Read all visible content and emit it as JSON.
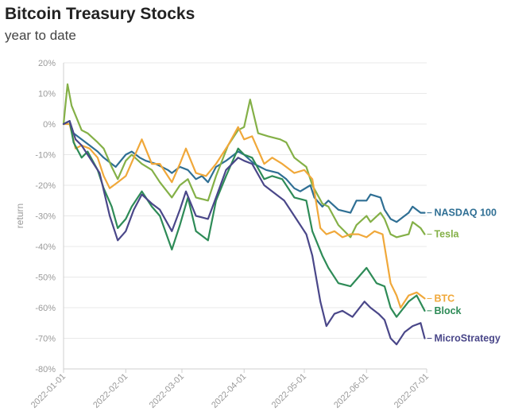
{
  "chart_data": {
    "type": "line",
    "title": "Bitcoin Treasury Stocks",
    "subtitle": "year to date",
    "ylabel": "return",
    "ylim": [
      -80,
      20
    ],
    "y_ticks": [
      20,
      10,
      0,
      -10,
      -20,
      -30,
      -40,
      -50,
      -60,
      -70,
      -80
    ],
    "y_tick_labels": [
      "20%",
      "10%",
      "0%",
      "-10%",
      "-20%",
      "-30%",
      "-40%",
      "-50%",
      "-60%",
      "-70%",
      "-80%"
    ],
    "xlim": [
      "2022-01-01",
      "2022-07-01"
    ],
    "x_ticks": [
      "2022-01-01",
      "2022-02-01",
      "2022-03-01",
      "2022-04-01",
      "2022-05-01",
      "2022-06-01",
      "2022-07-01"
    ],
    "grid": true,
    "legend": "line-end labels",
    "series": [
      {
        "name": "NASDAQ 100",
        "color": "#2f6f94",
        "points": [
          [
            "2022-01-01",
            0
          ],
          [
            "2022-01-04",
            1
          ],
          [
            "2022-01-06",
            -3
          ],
          [
            "2022-01-10",
            -5
          ],
          [
            "2022-01-14",
            -7
          ],
          [
            "2022-01-18",
            -9
          ],
          [
            "2022-01-21",
            -11
          ],
          [
            "2022-01-25",
            -13
          ],
          [
            "2022-01-27",
            -14
          ],
          [
            "2022-02-01",
            -10
          ],
          [
            "2022-02-04",
            -9
          ],
          [
            "2022-02-08",
            -11
          ],
          [
            "2022-02-11",
            -12
          ],
          [
            "2022-02-16",
            -13
          ],
          [
            "2022-02-22",
            -15
          ],
          [
            "2022-02-24",
            -16
          ],
          [
            "2022-02-28",
            -14
          ],
          [
            "2022-03-04",
            -15
          ],
          [
            "2022-03-08",
            -18
          ],
          [
            "2022-03-11",
            -17
          ],
          [
            "2022-03-14",
            -19
          ],
          [
            "2022-03-18",
            -14
          ],
          [
            "2022-03-23",
            -12
          ],
          [
            "2022-03-29",
            -9
          ],
          [
            "2022-04-01",
            -10
          ],
          [
            "2022-04-06",
            -13
          ],
          [
            "2022-04-12",
            -15
          ],
          [
            "2022-04-18",
            -16
          ],
          [
            "2022-04-22",
            -18
          ],
          [
            "2022-04-26",
            -21
          ],
          [
            "2022-04-29",
            -22
          ],
          [
            "2022-05-04",
            -20
          ],
          [
            "2022-05-06",
            -24
          ],
          [
            "2022-05-10",
            -27
          ],
          [
            "2022-05-13",
            -25
          ],
          [
            "2022-05-18",
            -28
          ],
          [
            "2022-05-24",
            -29
          ],
          [
            "2022-05-27",
            -25
          ],
          [
            "2022-06-01",
            -25
          ],
          [
            "2022-06-03",
            -23
          ],
          [
            "2022-06-08",
            -24
          ],
          [
            "2022-06-10",
            -28
          ],
          [
            "2022-06-13",
            -31
          ],
          [
            "2022-06-16",
            -32
          ],
          [
            "2022-06-22",
            -29
          ],
          [
            "2022-06-24",
            -27
          ],
          [
            "2022-06-28",
            -29
          ],
          [
            "2022-06-30",
            -29
          ]
        ]
      },
      {
        "name": "Tesla",
        "color": "#84b047",
        "points": [
          [
            "2022-01-01",
            0
          ],
          [
            "2022-01-03",
            13
          ],
          [
            "2022-01-05",
            6
          ],
          [
            "2022-01-10",
            -2
          ],
          [
            "2022-01-13",
            -3
          ],
          [
            "2022-01-18",
            -6
          ],
          [
            "2022-01-21",
            -8
          ],
          [
            "2022-01-25",
            -14
          ],
          [
            "2022-01-28",
            -18
          ],
          [
            "2022-02-01",
            -12
          ],
          [
            "2022-02-04",
            -10
          ],
          [
            "2022-02-09",
            -13
          ],
          [
            "2022-02-14",
            -15
          ],
          [
            "2022-02-18",
            -19
          ],
          [
            "2022-02-24",
            -24
          ],
          [
            "2022-02-28",
            -20
          ],
          [
            "2022-03-04",
            -18
          ],
          [
            "2022-03-08",
            -24
          ],
          [
            "2022-03-14",
            -25
          ],
          [
            "2022-03-18",
            -17
          ],
          [
            "2022-03-24",
            -7
          ],
          [
            "2022-03-29",
            -2
          ],
          [
            "2022-04-01",
            -1
          ],
          [
            "2022-04-04",
            8
          ],
          [
            "2022-04-08",
            -3
          ],
          [
            "2022-04-13",
            -4
          ],
          [
            "2022-04-19",
            -5
          ],
          [
            "2022-04-22",
            -6
          ],
          [
            "2022-04-26",
            -11
          ],
          [
            "2022-05-02",
            -14
          ],
          [
            "2022-05-05",
            -20
          ],
          [
            "2022-05-10",
            -26
          ],
          [
            "2022-05-13",
            -27
          ],
          [
            "2022-05-18",
            -33
          ],
          [
            "2022-05-24",
            -37
          ],
          [
            "2022-05-27",
            -33
          ],
          [
            "2022-06-01",
            -30
          ],
          [
            "2022-06-03",
            -32
          ],
          [
            "2022-06-08",
            -29
          ],
          [
            "2022-06-10",
            -31
          ],
          [
            "2022-06-13",
            -36
          ],
          [
            "2022-06-16",
            -37
          ],
          [
            "2022-06-22",
            -36
          ],
          [
            "2022-06-24",
            -32
          ],
          [
            "2022-06-28",
            -34
          ],
          [
            "2022-06-30",
            -36
          ]
        ]
      },
      {
        "name": "BTC",
        "color": "#f0a83a",
        "points": [
          [
            "2022-01-01",
            0
          ],
          [
            "2022-01-04",
            0
          ],
          [
            "2022-01-07",
            -8
          ],
          [
            "2022-01-10",
            -7
          ],
          [
            "2022-01-14",
            -8
          ],
          [
            "2022-01-18",
            -11
          ],
          [
            "2022-01-21",
            -17
          ],
          [
            "2022-01-24",
            -21
          ],
          [
            "2022-01-28",
            -19
          ],
          [
            "2022-02-01",
            -17
          ],
          [
            "2022-02-05",
            -11
          ],
          [
            "2022-02-09",
            -5
          ],
          [
            "2022-02-14",
            -13
          ],
          [
            "2022-02-18",
            -13
          ],
          [
            "2022-02-24",
            -19
          ],
          [
            "2022-02-28",
            -13
          ],
          [
            "2022-03-03",
            -8
          ],
          [
            "2022-03-08",
            -16
          ],
          [
            "2022-03-13",
            -17
          ],
          [
            "2022-03-18",
            -13
          ],
          [
            "2022-03-24",
            -7
          ],
          [
            "2022-03-29",
            -1
          ],
          [
            "2022-04-01",
            -5
          ],
          [
            "2022-04-05",
            -4
          ],
          [
            "2022-04-11",
            -13
          ],
          [
            "2022-04-15",
            -11
          ],
          [
            "2022-04-20",
            -13
          ],
          [
            "2022-04-26",
            -16
          ],
          [
            "2022-05-01",
            -15
          ],
          [
            "2022-05-05",
            -18
          ],
          [
            "2022-05-09",
            -34
          ],
          [
            "2022-05-12",
            -36
          ],
          [
            "2022-05-16",
            -35
          ],
          [
            "2022-05-20",
            -37
          ],
          [
            "2022-05-24",
            -36
          ],
          [
            "2022-05-28",
            -36
          ],
          [
            "2022-06-01",
            -37
          ],
          [
            "2022-06-05",
            -35
          ],
          [
            "2022-06-09",
            -36
          ],
          [
            "2022-06-13",
            -52
          ],
          [
            "2022-06-16",
            -56
          ],
          [
            "2022-06-18",
            -60
          ],
          [
            "2022-06-22",
            -56
          ],
          [
            "2022-06-26",
            -55
          ],
          [
            "2022-06-30",
            -57
          ]
        ]
      },
      {
        "name": "Block",
        "color": "#2e8b57",
        "points": [
          [
            "2022-01-01",
            0
          ],
          [
            "2022-01-04",
            1
          ],
          [
            "2022-01-06",
            -6
          ],
          [
            "2022-01-10",
            -11
          ],
          [
            "2022-01-13",
            -9
          ],
          [
            "2022-01-18",
            -15
          ],
          [
            "2022-01-21",
            -21
          ],
          [
            "2022-01-25",
            -27
          ],
          [
            "2022-01-28",
            -34
          ],
          [
            "2022-02-01",
            -31
          ],
          [
            "2022-02-04",
            -27
          ],
          [
            "2022-02-09",
            -22
          ],
          [
            "2022-02-14",
            -27
          ],
          [
            "2022-02-18",
            -30
          ],
          [
            "2022-02-24",
            -41
          ],
          [
            "2022-02-28",
            -33
          ],
          [
            "2022-03-04",
            -24
          ],
          [
            "2022-03-08",
            -35
          ],
          [
            "2022-03-14",
            -38
          ],
          [
            "2022-03-18",
            -25
          ],
          [
            "2022-03-23",
            -17
          ],
          [
            "2022-03-29",
            -8
          ],
          [
            "2022-04-01",
            -10
          ],
          [
            "2022-04-05",
            -11
          ],
          [
            "2022-04-11",
            -18
          ],
          [
            "2022-04-15",
            -17
          ],
          [
            "2022-04-20",
            -18
          ],
          [
            "2022-04-26",
            -24
          ],
          [
            "2022-05-02",
            -25
          ],
          [
            "2022-05-05",
            -35
          ],
          [
            "2022-05-10",
            -43
          ],
          [
            "2022-05-13",
            -47
          ],
          [
            "2022-05-18",
            -52
          ],
          [
            "2022-05-24",
            -53
          ],
          [
            "2022-05-28",
            -50
          ],
          [
            "2022-06-01",
            -47
          ],
          [
            "2022-06-06",
            -52
          ],
          [
            "2022-06-10",
            -53
          ],
          [
            "2022-06-13",
            -60
          ],
          [
            "2022-06-16",
            -63
          ],
          [
            "2022-06-22",
            -58
          ],
          [
            "2022-06-26",
            -56
          ],
          [
            "2022-06-30",
            -61
          ]
        ]
      },
      {
        "name": "MicroStrategy",
        "color": "#4a4789",
        "points": [
          [
            "2022-01-01",
            0
          ],
          [
            "2022-01-04",
            1
          ],
          [
            "2022-01-07",
            -5
          ],
          [
            "2022-01-10",
            -7
          ],
          [
            "2022-01-14",
            -11
          ],
          [
            "2022-01-19",
            -16
          ],
          [
            "2022-01-24",
            -30
          ],
          [
            "2022-01-28",
            -38
          ],
          [
            "2022-02-01",
            -35
          ],
          [
            "2022-02-05",
            -28
          ],
          [
            "2022-02-09",
            -23
          ],
          [
            "2022-02-14",
            -26
          ],
          [
            "2022-02-18",
            -28
          ],
          [
            "2022-02-24",
            -35
          ],
          [
            "2022-02-28",
            -28
          ],
          [
            "2022-03-03",
            -22
          ],
          [
            "2022-03-08",
            -30
          ],
          [
            "2022-03-14",
            -31
          ],
          [
            "2022-03-18",
            -24
          ],
          [
            "2022-03-23",
            -15
          ],
          [
            "2022-03-29",
            -11
          ],
          [
            "2022-04-01",
            -12
          ],
          [
            "2022-04-05",
            -13
          ],
          [
            "2022-04-11",
            -20
          ],
          [
            "2022-04-15",
            -22
          ],
          [
            "2022-04-21",
            -25
          ],
          [
            "2022-04-27",
            -31
          ],
          [
            "2022-05-02",
            -36
          ],
          [
            "2022-05-05",
            -43
          ],
          [
            "2022-05-09",
            -58
          ],
          [
            "2022-05-12",
            -66
          ],
          [
            "2022-05-16",
            -62
          ],
          [
            "2022-05-20",
            -61
          ],
          [
            "2022-05-25",
            -63
          ],
          [
            "2022-05-31",
            -58
          ],
          [
            "2022-06-03",
            -60
          ],
          [
            "2022-06-07",
            -62
          ],
          [
            "2022-06-10",
            -64
          ],
          [
            "2022-06-13",
            -70
          ],
          [
            "2022-06-16",
            -72
          ],
          [
            "2022-06-20",
            -68
          ],
          [
            "2022-06-24",
            -66
          ],
          [
            "2022-06-28",
            -65
          ],
          [
            "2022-06-30",
            -70
          ]
        ]
      }
    ]
  }
}
